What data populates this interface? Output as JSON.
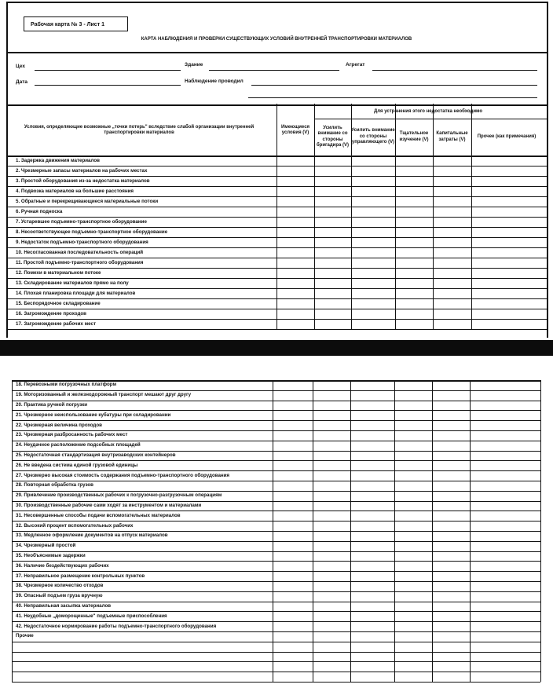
{
  "card_label": "Рабочая карта № 3 - Лист 1",
  "title": "КАРТА НАБЛЮДЕНИЯ И ПРОВЕРКИ СУЩЕСТВУЮЩИХ УСЛОВИЙ ВНУТРЕННЕЙ ТРАНСПОРТИРОВКИ МАТЕРИАЛОВ",
  "fields": {
    "workshop": "Цех",
    "building": "Здание",
    "unit": "Агрегат",
    "date": "Дата",
    "observer": "Наблюдение проводил"
  },
  "table_header": {
    "conditions": "Условия, определяющие возможные „точки потерь\" вследствие слабой организации внутренней транспортировки материалов",
    "existing": "Имеющиеся условия (V)",
    "group": "Для устранения этого недостатка необходимо",
    "foreman": "Усилить внимание со стороны бригадира (V)",
    "manager": "Усилить внимание со стороны управляющего (V)",
    "study": "Тщательное изучение (V)",
    "capital": "Капитальные затраты (V)",
    "other": "Прочее (как примечания)"
  },
  "rows_sheet1": [
    "1. Задержка движения материалов",
    "2. Чрезмерные запасы материалов на рабочих местах",
    "3. Простой оборудования из-за недостатка материалов",
    "4. Подвозка материалов на большие расстояния",
    "5. Обратные и перекрещивающиеся материальные потоки",
    "6. Ручная подноска",
    "7. Устаревшее подъемно-транспортное оборудование",
    "8. Несоответствующее подъемно-транспортное оборудование",
    "9. Недостаток подъемно-транспортного оборудования",
    "10. Несогласованная последовательность операций",
    "11. Простой подъемно-транспортного оборудования",
    "12. Помехи в материальном потоке",
    "13. Складирование материалов прямо на полу",
    "14. Плохая планировка площади для материалов",
    "15. Беспорядочное складирование",
    "16. Загромождение проходов",
    "17. Загромождение рабочих мест"
  ],
  "rows_sheet2": [
    "18. Перевозными погрузочных платформ",
    "19. Моторизованный и железнодорожный транспорт мешают друг другу",
    "20. Практика ручной погрузки",
    "21. Чрезмерное неиспользование кубатуры при складировании",
    "22. Чрезмерная величина проходов",
    "23. Чрезмерная разбросанность рабочих мест",
    "24. Неудачное расположение подсобных площадей",
    "25. Недостаточная стандартизация внутризаводских контейнеров",
    "26. Не введена система единой грузовой единицы",
    "27. Чрезмерно высокая стоимость содержания подъемно-транспортного оборудования",
    "28. Повторная обработка грузов",
    "29. Привлечение производственных рабочих к погрузочно-разгрузочным операциям",
    "30. Производственные рабочие сами ходят за инструментом и материалами",
    "31. Несовершенные способы подачи вспомогательных материалов",
    "32. Высокий процент вспомогательных рабочих",
    "33. Медленное оформление документов на отпуск материалов",
    "34. Чрезмерный простой",
    "35. Необъяснимые задержки",
    "36. Наличие бездействующих рабочих",
    "37. Неправильное размещение контрольных пунктов",
    "38. Чрезмерное количество отходов",
    "39. Опасный подъем груза вручную",
    "40. Неправильная засыпка материалов",
    "41. Неудобные „доморощенные\" подъемные приспособления",
    "42. Недостаточное нормирование работы подъемно-транспортного оборудования",
    "Прочие",
    "",
    "",
    "",
    ""
  ]
}
